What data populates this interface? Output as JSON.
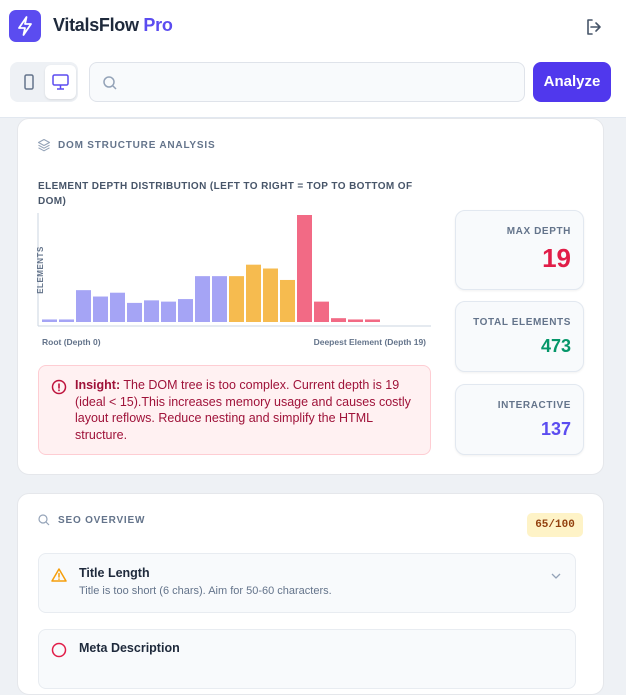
{
  "header": {
    "brand": "VitalsFlow",
    "badge": "Pro"
  },
  "toolbar": {
    "button": "Analyze"
  },
  "dom_card": {
    "title": "DOM STRUCTURE ANALYSIS",
    "chart_data": {
      "type": "bar",
      "title": "ELEMENT DEPTH DISTRIBUTION (LEFT TO RIGHT = TOP TO BOTTOM OF DOM)",
      "y_label": "ELEMENTS",
      "x_start_label": "Root (Depth 0)",
      "x_end_label": "Deepest Element (Depth 19)",
      "values": [
        2,
        2,
        25,
        20,
        23,
        15,
        17,
        16,
        18,
        36,
        36,
        36,
        45,
        42,
        33,
        84,
        16,
        3,
        2,
        2
      ],
      "colors": [
        "#a5a4f5",
        "#a5a4f5",
        "#a5a4f5",
        "#a5a4f5",
        "#a5a4f5",
        "#a5a4f5",
        "#a5a4f5",
        "#a5a4f5",
        "#a5a4f5",
        "#a5a4f5",
        "#a5a4f5",
        "#f6bb4f",
        "#f6bb4f",
        "#f6bb4f",
        "#f6bb4f",
        "#f26a85",
        "#f26a85",
        "#f26a85",
        "#f26a85",
        "#f26a85"
      ],
      "ylim": [
        0,
        84
      ]
    },
    "insight": {
      "label": "Insight:",
      "text": "The DOM tree is too complex. Current depth is 19 (ideal < 15).This increases memory usage and causes costly layout reflows. Reduce nesting and simplify the HTML structure."
    },
    "stats": [
      {
        "label": "MAX DEPTH",
        "value": "19"
      },
      {
        "label": "TOTAL ELEMENTS",
        "value": "473"
      },
      {
        "label": "INTERACTIVE",
        "value": "137"
      }
    ]
  },
  "seo_card": {
    "title": "SEO OVERVIEW",
    "score": "65/100",
    "items": [
      {
        "title": "Title Length",
        "text": "Title is too short (6 chars). Aim for 50-60 characters."
      },
      {
        "title": "Meta Description"
      }
    ]
  }
}
